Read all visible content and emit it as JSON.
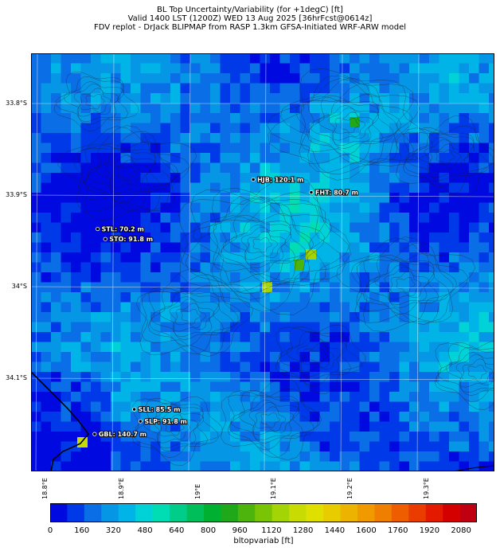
{
  "title": {
    "line1": "BL Top Uncertainty/Variability (for +1degC) [ft]",
    "line2": "Valid 1400 LST (1200Z) WED 13 Aug 2025 [36hrFcst@0614z]",
    "line3": "FDV replot - DrJack BLIPMAP from RASP 1.3km GFSA-Initiated WRF-ARW model"
  },
  "axes": {
    "lat_labels": [
      "33.8°S",
      "33.9°S",
      "34°S",
      "34.1°S"
    ],
    "lon_labels": [
      "18.8°E",
      "18.9°E",
      "19°E",
      "19.1°E",
      "19.2°E",
      "19.3°E"
    ]
  },
  "stations": [
    {
      "id": "HJB",
      "label": "HJB: 120.1 m",
      "lon": 19.083,
      "lat": -33.883
    },
    {
      "id": "FHT",
      "label": "FHT: 80.7 m",
      "lon": 19.159,
      "lat": -33.897
    },
    {
      "id": "STL",
      "label": "STL: 70.2 m",
      "lon": 18.879,
      "lat": -33.937
    },
    {
      "id": "STO",
      "label": "STO: 91.8 m",
      "lon": 18.889,
      "lat": -33.948
    },
    {
      "id": "SLL",
      "label": "SLL: 85.5 m",
      "lon": 18.927,
      "lat": -34.134
    },
    {
      "id": "SLP",
      "label": "SLP: 91.8 m",
      "lon": 18.935,
      "lat": -34.147
    },
    {
      "id": "GBL",
      "label": "GBL: 140.7 m",
      "lon": 18.875,
      "lat": -34.161
    }
  ],
  "colorbar": {
    "label": "bltopvariab [ft]",
    "tick_labels": [
      "0",
      "160",
      "320",
      "480",
      "640",
      "800",
      "960",
      "1120",
      "1280",
      "1440",
      "1600",
      "1760",
      "1920",
      "2080"
    ],
    "min": 0,
    "max": 2160,
    "colors": [
      "#0009e0",
      "#003ae8",
      "#0a6ee6",
      "#0696e6",
      "#00b4e8",
      "#00d2d8",
      "#00dcb4",
      "#00cd8a",
      "#00bf5a",
      "#00b030",
      "#1ea81a",
      "#4cb40c",
      "#7ac406",
      "#a2d406",
      "#c8dc04",
      "#e0e000",
      "#e8cc00",
      "#ecb400",
      "#f09a00",
      "#f07e00",
      "#ee5e00",
      "#ea3c00",
      "#e41a00",
      "#d40000",
      "#c00010"
    ]
  }
}
